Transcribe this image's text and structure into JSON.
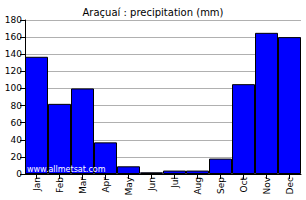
{
  "chart_data": {
    "type": "bar",
    "title": "Araçuaí : precipitation (mm)",
    "categories": [
      "Jan",
      "Feb",
      "Mar",
      "Apr",
      "May",
      "Jun",
      "Jul",
      "Aug",
      "Sep",
      "Oct",
      "Nov",
      "Dec"
    ],
    "values": [
      137,
      82,
      100,
      37,
      9,
      2,
      4,
      4,
      18,
      105,
      165,
      160
    ],
    "color": "#0000ff",
    "ylim": [
      0,
      180
    ],
    "yticks": [
      0,
      20,
      40,
      60,
      80,
      100,
      120,
      140,
      160,
      180
    ],
    "grid": true,
    "annotations": [
      "www.allmetsat.com"
    ]
  }
}
